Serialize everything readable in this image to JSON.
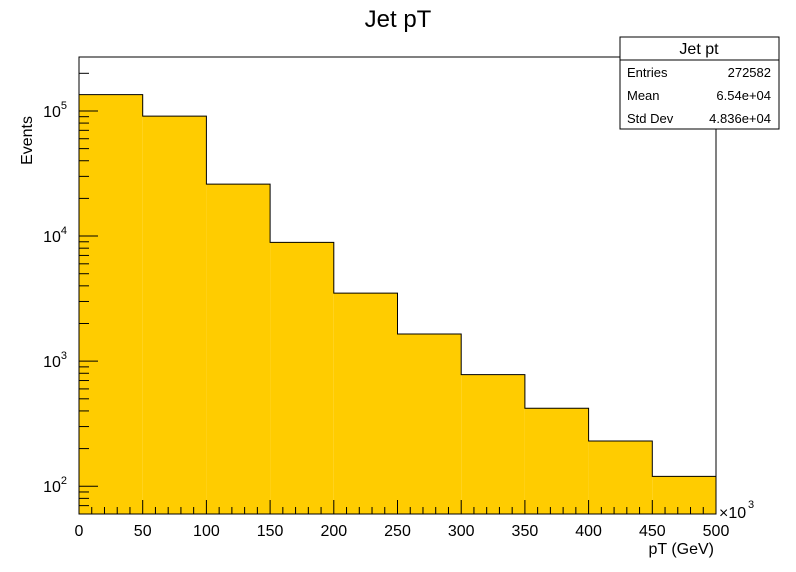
{
  "chart_data": {
    "type": "bar",
    "title": "Jet pT",
    "xlabel": "pT (GeV)",
    "ylabel": "Events",
    "x_multiplier_label": "×10",
    "x_multiplier_exp": "3",
    "xlim": [
      0,
      500
    ],
    "ylim": [
      60,
      270000
    ],
    "y_scale": "log",
    "bin_edges": [
      0,
      50,
      100,
      150,
      200,
      250,
      300,
      350,
      400,
      450,
      500
    ],
    "values": [
      135000,
      91000,
      26000,
      8900,
      3500,
      1650,
      780,
      420,
      230,
      120
    ],
    "x_ticks": [
      "0",
      "50",
      "100",
      "150",
      "200",
      "250",
      "300",
      "350",
      "400",
      "450",
      "500"
    ],
    "y_ticks": [
      {
        "value": 100,
        "base": "10",
        "exp": "2"
      },
      {
        "value": 1000,
        "base": "10",
        "exp": "3"
      },
      {
        "value": 10000,
        "base": "10",
        "exp": "4"
      },
      {
        "value": 100000,
        "base": "10",
        "exp": "5"
      }
    ],
    "fill_color": "#ffcc00",
    "grid": false,
    "legend_position": "top-right"
  },
  "stats_box": {
    "title": "Jet pt",
    "rows": [
      {
        "label": "Entries",
        "value": "272582"
      },
      {
        "label": "Mean",
        "value": "6.54e+04"
      },
      {
        "label": "Std Dev",
        "value": "4.836e+04"
      }
    ]
  }
}
